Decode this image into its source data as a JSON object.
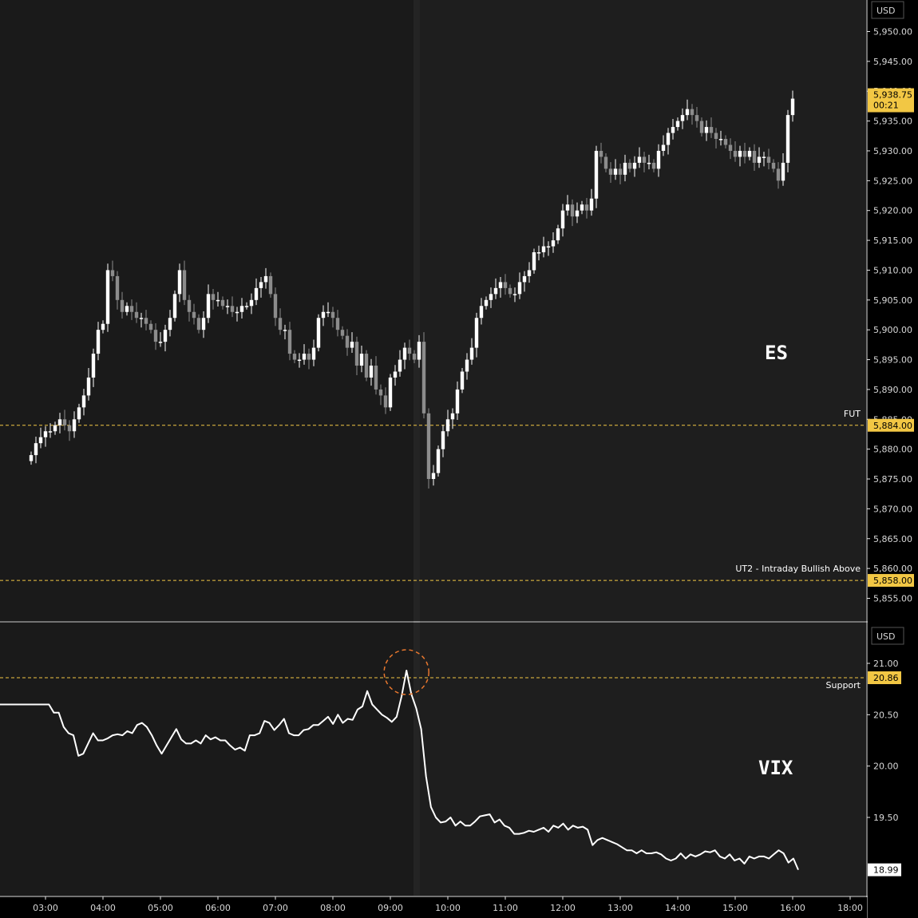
{
  "currency": "USD",
  "colors": {
    "background": "#000000",
    "highlight_band": "#1b1b1b",
    "up_candle": "#ffffff",
    "down_candle": "#8c8c8c",
    "level_line": "#f2c744",
    "level_tag": "#f2c744",
    "vix_line": "#ffffff",
    "circle": "#e8772e"
  },
  "time_axis": {
    "labels": [
      "03:00",
      "04:00",
      "05:00",
      "06:00",
      "07:00",
      "08:00",
      "09:00",
      "10:00",
      "11:00",
      "12:00",
      "13:00",
      "14:00",
      "15:00",
      "16:00",
      "18:00"
    ]
  },
  "es_panel": {
    "symbol_label": "ES",
    "price_axis_labels": [
      "5,950.00",
      "5,945.00",
      "5,940.00",
      "5,935.00",
      "5,930.00",
      "5,925.00",
      "5,920.00",
      "5,915.00",
      "5,910.00",
      "5,905.00",
      "5,900.00",
      "5,895.00",
      "5,890.00",
      "5,885.00",
      "5,880.00",
      "5,875.00",
      "5,870.00",
      "5,865.00",
      "5,860.00",
      "5,855.00"
    ],
    "ylim": [
      5852,
      5953
    ],
    "last_price_tag": "5,938.75",
    "countdown_tag": "00:21",
    "levels": [
      {
        "name": "FUT",
        "value": 5884.0,
        "tag": "5,884.00"
      },
      {
        "name": "UT2 - Intraday Bullish Above",
        "value": 5858.0,
        "tag": "5,858.00"
      }
    ]
  },
  "vix_panel": {
    "symbol_label": "VIX",
    "price_axis_labels": [
      "21.00",
      "20.50",
      "20.00",
      "19.50"
    ],
    "ylim": [
      18.8,
      21.3
    ],
    "last_value_tag": "18.99",
    "support_level": {
      "name": "Support",
      "value": 20.86,
      "tag": "20.86"
    }
  },
  "chart_data": [
    {
      "type": "candlestick",
      "title": "ES",
      "x_start": "02:45",
      "bar_interval_minutes": 5,
      "note_values": "close prices of consecutive 5-minute bars",
      "closes": [
        5879,
        5881,
        5882,
        5883,
        5883,
        5884,
        5885,
        5884,
        5883,
        5885,
        5887,
        5889,
        5892,
        5896,
        5900,
        5901,
        5910,
        5909,
        5905,
        5903,
        5904,
        5903,
        5902,
        5902,
        5901,
        5900,
        5898,
        5898,
        5900,
        5902,
        5906,
        5910,
        5905,
        5903,
        5902,
        5900,
        5902,
        5906,
        5905,
        5905,
        5904,
        5904,
        5903,
        5903,
        5904,
        5904,
        5905,
        5907,
        5908,
        5909,
        5906,
        5902,
        5900,
        5900,
        5896,
        5895,
        5895,
        5896,
        5895,
        5897,
        5902,
        5903,
        5903,
        5902,
        5900,
        5899,
        5897,
        5898,
        5894,
        5896,
        5892,
        5894,
        5890,
        5889,
        5887,
        5892,
        5893,
        5895,
        5897,
        5896,
        5895,
        5898,
        5886,
        5875,
        5876,
        5880,
        5883,
        5885,
        5886,
        5890,
        5893,
        5895,
        5897,
        5902,
        5904,
        5905,
        5906,
        5907,
        5908,
        5907,
        5906,
        5906,
        5908,
        5909,
        5910,
        5913,
        5913,
        5914,
        5914,
        5915,
        5917,
        5920,
        5921,
        5919,
        5920,
        5921,
        5920,
        5922,
        5930,
        5929,
        5927,
        5926,
        5927,
        5926,
        5928,
        5927,
        5928,
        5929,
        5928,
        5928,
        5927,
        5930,
        5931,
        5933,
        5934,
        5935,
        5936,
        5937,
        5936,
        5935,
        5933,
        5934,
        5933,
        5932,
        5932,
        5931,
        5930,
        5929,
        5930,
        5929,
        5930,
        5928,
        5929,
        5929,
        5928,
        5927,
        5925,
        5928,
        5936,
        5938.75
      ]
    },
    {
      "type": "line",
      "title": "VIX",
      "x_start": "02:45",
      "point_interval_minutes": 5,
      "values": [
        20.6,
        20.6,
        20.6,
        20.6,
        20.6,
        20.6,
        20.6,
        20.6,
        20.6,
        20.6,
        20.6,
        20.52,
        20.52,
        20.38,
        20.32,
        20.3,
        20.1,
        20.12,
        20.22,
        20.32,
        20.25,
        20.25,
        20.27,
        20.3,
        20.31,
        20.3,
        20.34,
        20.32,
        20.4,
        20.42,
        20.38,
        20.3,
        20.2,
        20.12,
        20.2,
        20.28,
        20.36,
        20.26,
        20.22,
        20.22,
        20.25,
        20.22,
        20.3,
        20.26,
        20.28,
        20.25,
        20.25,
        20.2,
        20.16,
        20.18,
        20.15,
        20.3,
        20.3,
        20.32,
        20.44,
        20.42,
        20.35,
        20.4,
        20.46,
        20.32,
        20.3,
        20.3,
        20.35,
        20.36,
        20.4,
        20.4,
        20.44,
        20.48,
        20.41,
        20.5,
        20.42,
        20.46,
        20.45,
        20.55,
        20.58,
        20.73,
        20.6,
        20.55,
        20.5,
        20.47,
        20.43,
        20.48,
        20.68,
        20.93,
        20.7,
        20.56,
        20.36,
        19.9,
        19.6,
        19.5,
        19.45,
        19.46,
        19.5,
        19.42,
        19.46,
        19.42,
        19.42,
        19.46,
        19.51,
        19.52,
        19.53,
        19.45,
        19.48,
        19.42,
        19.4,
        19.34,
        19.34,
        19.35,
        19.37,
        19.36,
        19.38,
        19.4,
        19.36,
        19.42,
        19.4,
        19.44,
        19.38,
        19.42,
        19.4,
        19.41,
        19.38,
        19.23,
        19.28,
        19.3,
        19.28,
        19.26,
        19.24,
        19.21,
        19.18,
        19.18,
        19.15,
        19.18,
        19.15,
        19.15,
        19.16,
        19.14,
        19.1,
        19.08,
        19.1,
        19.15,
        19.1,
        19.14,
        19.12,
        19.14,
        19.17,
        19.16,
        19.18,
        19.12,
        19.1,
        19.14,
        19.08,
        19.1,
        19.05,
        19.12,
        19.1,
        19.12,
        19.12,
        19.1,
        19.14,
        19.18,
        19.15,
        19.06,
        19.1,
        18.99
      ]
    }
  ]
}
